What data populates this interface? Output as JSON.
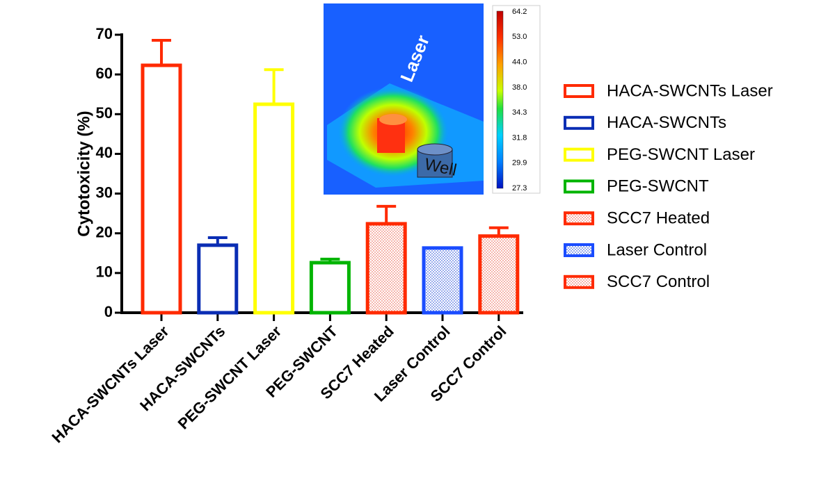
{
  "chart_data": {
    "type": "bar",
    "y_label": "Cytotoxicity (%)",
    "categories": [
      "HACA-SWCNTs Laser",
      "HACA-SWCNTs",
      "PEG-SWCNT Laser",
      "PEG-SWCNT",
      "SCC7 Heated",
      "Laser Control",
      "SCC7 Control"
    ],
    "values": [
      62.3,
      17.0,
      52.5,
      12.6,
      22.4,
      16.3,
      19.3
    ],
    "errors": [
      6.3,
      1.9,
      8.7,
      0.9,
      4.4,
      null,
      2.1
    ],
    "colors": [
      "#ff2a00",
      "#0a2db4",
      "#ffff00",
      "#00b400",
      "#ff2a00",
      "#1a4cff",
      "#ff2a00"
    ],
    "fills": [
      "none",
      "none",
      "none",
      "none",
      "dots-red",
      "dots-blue",
      "dots-red"
    ],
    "ylim": [
      0,
      70
    ],
    "yticks": [
      0,
      10,
      20,
      30,
      40,
      50,
      60,
      70
    ],
    "legend": "right"
  },
  "inset": {
    "laser_label": "Laser",
    "well_label": "Well",
    "scale_labels": [
      "64.2",
      "53.0",
      "44.0",
      "38.0",
      "34.3",
      "31.8",
      "29.9",
      "27.3"
    ]
  }
}
